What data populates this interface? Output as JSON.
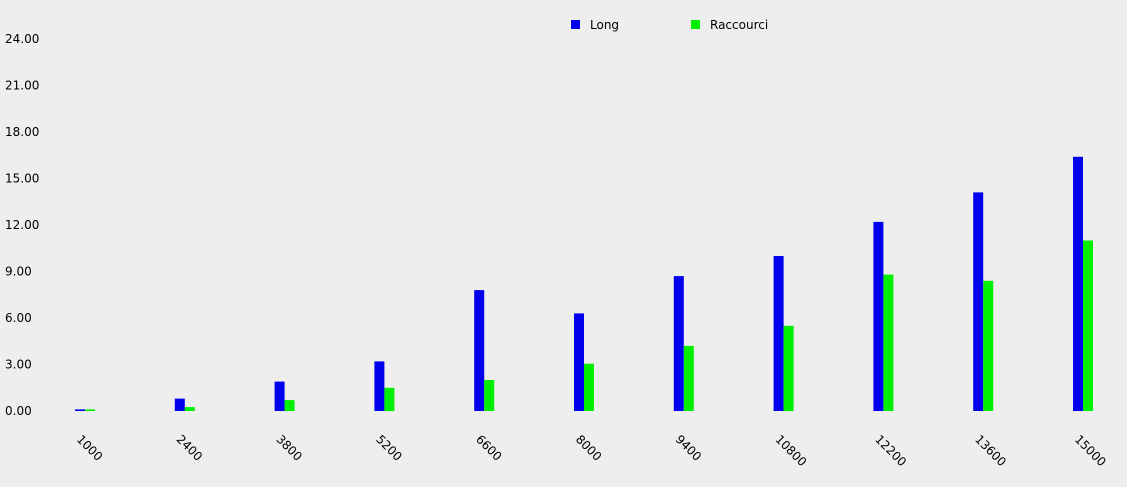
{
  "chart_data": {
    "type": "bar",
    "categories": [
      "1000",
      "2400",
      "3800",
      "5200",
      "6600",
      "8000",
      "9400",
      "10800",
      "12200",
      "13600",
      "15000"
    ],
    "series": [
      {
        "name": "Long",
        "color": "#0000ee",
        "values": [
          0.1,
          0.8,
          1.9,
          3.2,
          7.8,
          6.3,
          8.7,
          10.0,
          12.2,
          14.1,
          16.4
        ]
      },
      {
        "name": "Raccourci",
        "color": "#00ee00",
        "values": [
          0.1,
          0.25,
          0.7,
          1.5,
          2.0,
          3.05,
          4.2,
          5.5,
          8.8,
          8.4,
          11.0
        ]
      }
    ],
    "yticks": [
      "0.00",
      "3.00",
      "6.00",
      "9.00",
      "12.00",
      "15.00",
      "18.00",
      "21.00",
      "24.00"
    ],
    "ylim": [
      0,
      24
    ],
    "legend_position": "top-center",
    "grid": false
  }
}
